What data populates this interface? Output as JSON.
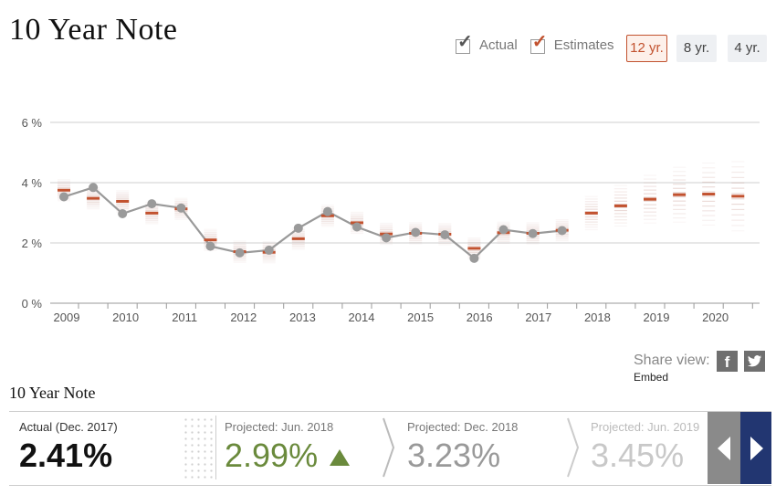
{
  "title": "10 Year Note",
  "legend": {
    "actual": "Actual",
    "estimates": "Estimates",
    "actual_color": "#555555",
    "estimate_color": "#c2522f"
  },
  "range_buttons": [
    "12 yr.",
    "8 yr.",
    "4 yr."
  ],
  "share": {
    "label": "Share view:",
    "embed": "Embed",
    "icons": [
      "facebook-icon",
      "twitter-icon"
    ]
  },
  "panel": {
    "title": "10 Year Note",
    "cards": [
      {
        "caption": "Actual (Dec. 2017)",
        "value": "2.41%",
        "style": "actual"
      },
      {
        "caption": "Projected: Jun. 2018",
        "value": "2.99%",
        "style": "up",
        "icon": "up-triangle-icon"
      },
      {
        "caption": "Projected: Dec. 2018",
        "value": "3.23%",
        "style": "muted"
      },
      {
        "caption": "Projected: Jun. 2019",
        "value": "3.45%",
        "style": "faded"
      }
    ],
    "nav": [
      "prev-arrow-icon",
      "next-arrow-icon"
    ]
  },
  "chart_data": {
    "type": "line",
    "ylim": [
      0,
      6
    ],
    "yticks": [
      "0 %",
      "2 %",
      "4 %",
      "6 %"
    ],
    "xticks": [
      "2009",
      "2010",
      "2011",
      "2012",
      "2013",
      "2014",
      "2015",
      "2016",
      "2017",
      "2018",
      "2019",
      "2020"
    ],
    "grid": true,
    "periods": [
      "Jun. 2009",
      "Dec. 2009",
      "Jun. 2010",
      "Dec. 2010",
      "Jun. 2011",
      "Dec. 2011",
      "Jun. 2012",
      "Dec. 2012",
      "Jun. 2013",
      "Dec. 2013",
      "Jun. 2014",
      "Dec. 2014",
      "Jun. 2015",
      "Dec. 2015",
      "Jun. 2016",
      "Dec. 2016",
      "Jun. 2017",
      "Dec. 2017",
      "Jun. 2018",
      "Dec. 2018",
      "Jun. 2019",
      "Dec. 2019",
      "Jun. 2020",
      "Dec. 2020"
    ],
    "series": [
      {
        "name": "Actual",
        "values": [
          3.53,
          3.84,
          2.97,
          3.3,
          3.16,
          1.89,
          1.67,
          1.76,
          2.49,
          3.04,
          2.53,
          2.17,
          2.35,
          2.27,
          1.49,
          2.44,
          2.31,
          2.41,
          null,
          null,
          null,
          null,
          null,
          null
        ]
      },
      {
        "name": "Estimates",
        "values": [
          3.75,
          3.48,
          3.38,
          2.99,
          3.13,
          2.1,
          1.71,
          1.69,
          2.14,
          2.9,
          2.67,
          2.3,
          2.32,
          2.29,
          1.82,
          2.34,
          2.32,
          2.42,
          2.99,
          3.23,
          3.45,
          3.6,
          3.62,
          3.55
        ]
      }
    ]
  }
}
